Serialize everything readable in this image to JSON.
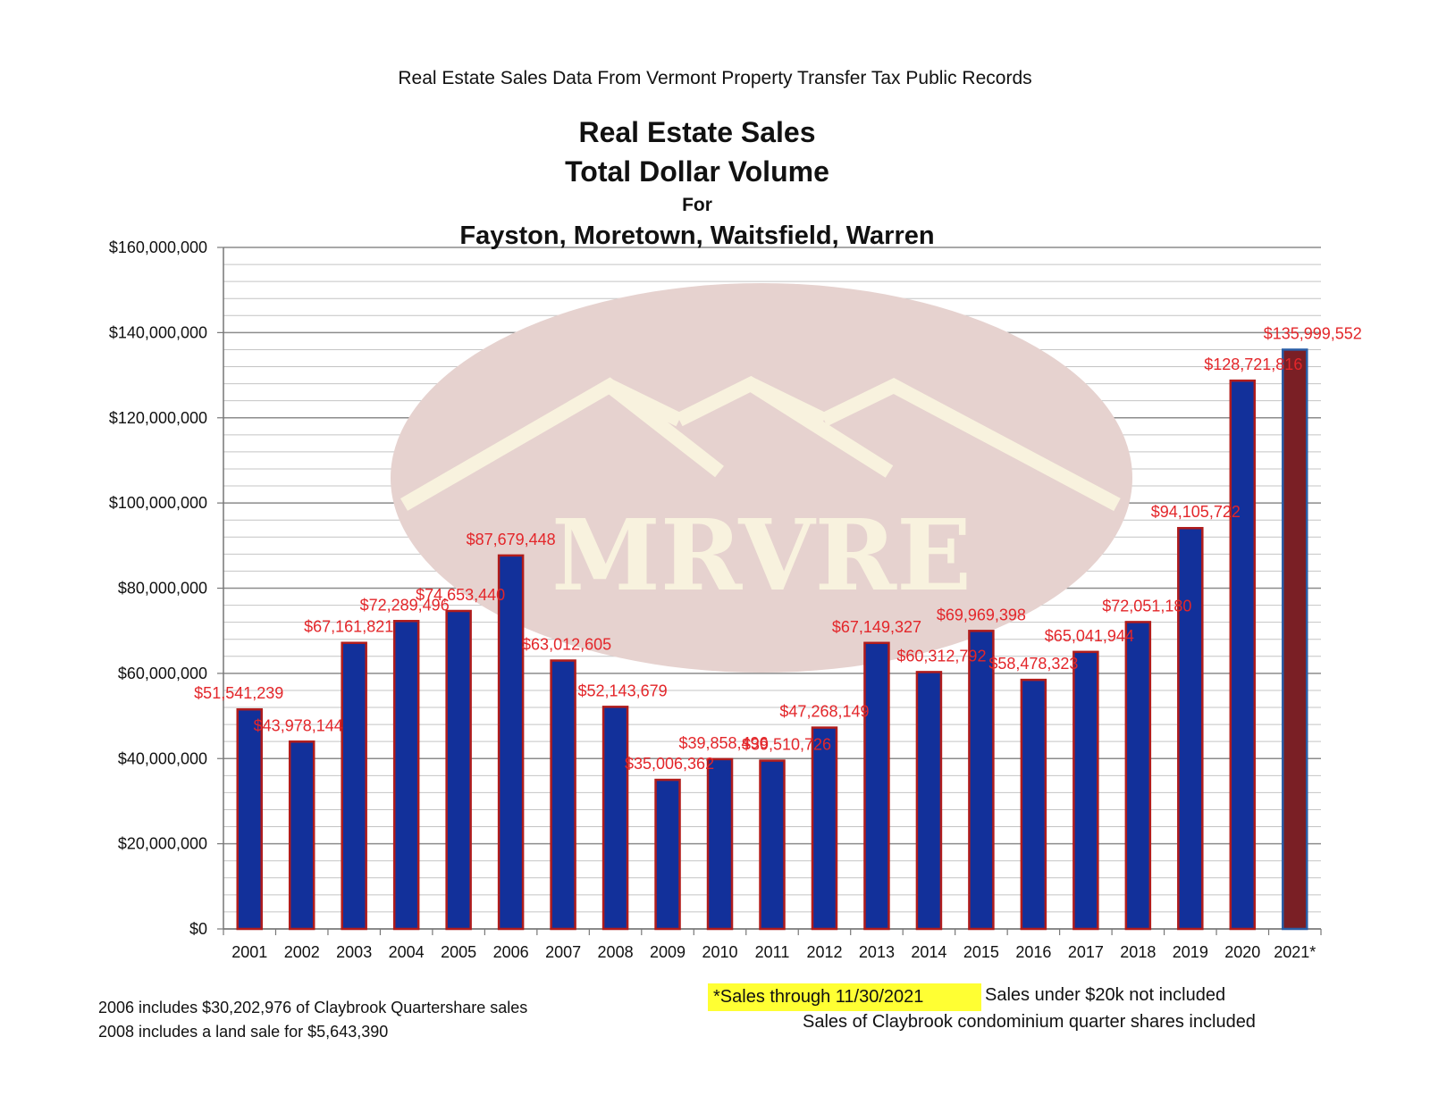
{
  "header": {
    "source": "Real Estate Sales Data From Vermont Property Transfer Tax Public Records"
  },
  "title": {
    "line1": "Real Estate Sales",
    "line2": "Total Dollar Volume",
    "line3": "For",
    "line4": "Fayston, Moretown, Waitsfield, Warren"
  },
  "watermark": {
    "text": "MRVRE"
  },
  "footnotes": {
    "note_2006": "2006 includes $30,202,976 of Claybrook Quartershare sales",
    "note_2008": "2008 includes a land sale for $5,643,390",
    "highlight": "*Sales through 11/30/2021",
    "under_20k": "Sales under $20k not included",
    "claybrook": "Sales of Claybrook condominium quarter shares included"
  },
  "colors": {
    "bar_fill": "#12309a",
    "bar_border": "#b01c1c",
    "bar_2021_fill": "#7a1f25",
    "bar_2021_border": "#2a5ea6",
    "data_label": "#e3262a",
    "gridline": "#a0a0a0",
    "watermark_fill": "#e6d2cf",
    "watermark_text": "#f8f2de"
  },
  "chart_data": {
    "type": "bar",
    "categories": [
      "2001",
      "2002",
      "2003",
      "2004",
      "2005",
      "2006",
      "2007",
      "2008",
      "2009",
      "2010",
      "2011",
      "2012",
      "2013",
      "2014",
      "2015",
      "2016",
      "2017",
      "2018",
      "2019",
      "2020",
      "2021*"
    ],
    "values": [
      51541239,
      43978144,
      67161821,
      72289496,
      74653440,
      87679448,
      63012605,
      52143679,
      35006362,
      39858496,
      39510726,
      47268149,
      67149327,
      60312792,
      69969398,
      58478323,
      65041944,
      72051180,
      94105722,
      128721816,
      135999552
    ],
    "data_labels": [
      "$51,541,239",
      "$43,978,144",
      "$67,161,821",
      "$72,289,496",
      "$74,653,440",
      "$87,679,448",
      "$63,012,605",
      "$52,143,679",
      "$35,006,362",
      "$39,858,496",
      "$39,510,726",
      "$47,268,149",
      "$67,149,327",
      "$60,312,792",
      "$69,969,398",
      "$58,478,323",
      "$65,041,944",
      "$72,051,180",
      "$94,105,722",
      "$128,721,816",
      "$135,999,552"
    ],
    "y_ticks": [
      0,
      20000000,
      40000000,
      60000000,
      80000000,
      100000000,
      120000000,
      140000000,
      160000000
    ],
    "y_tick_labels": [
      "$0",
      "$20,000,000",
      "$40,000,000",
      "$60,000,000",
      "$80,000,000",
      "$100,000,000",
      "$120,000,000",
      "$140,000,000",
      "$160,000,000"
    ],
    "ylim": [
      0,
      160000000
    ],
    "minor_grid_step": 4000000,
    "grid": true,
    "legend": "none",
    "highlighted_category": "2021*"
  }
}
